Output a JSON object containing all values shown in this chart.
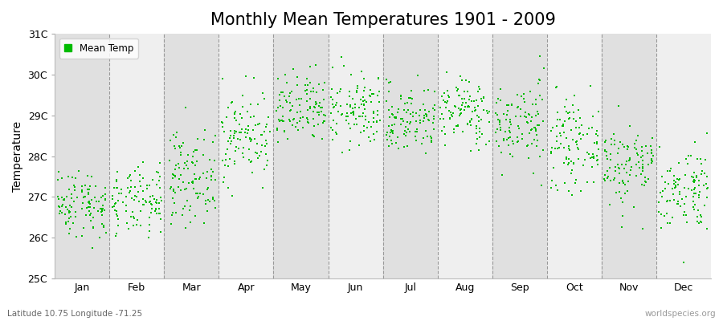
{
  "title": "Monthly Mean Temperatures 1901 - 2009",
  "ylabel": "Temperature",
  "subtitle": "Latitude 10.75 Longitude -71.25",
  "watermark": "worldspecies.org",
  "dot_color": "#00BB00",
  "dot_size": 2.5,
  "ylim": [
    25,
    31
  ],
  "yticks": [
    25,
    26,
    27,
    28,
    29,
    30,
    31
  ],
  "ytick_labels": [
    "25C",
    "26C",
    "27C",
    "28C",
    "29C",
    "30C",
    "31C"
  ],
  "months": [
    "Jan",
    "Feb",
    "Mar",
    "Apr",
    "May",
    "Jun",
    "Jul",
    "Aug",
    "Sep",
    "Oct",
    "Nov",
    "Dec"
  ],
  "monthly_means": [
    26.85,
    26.85,
    27.5,
    28.5,
    29.1,
    29.1,
    28.9,
    29.1,
    28.8,
    28.3,
    27.8,
    27.2
  ],
  "monthly_stds": [
    0.42,
    0.42,
    0.55,
    0.55,
    0.45,
    0.45,
    0.42,
    0.42,
    0.52,
    0.52,
    0.52,
    0.52
  ],
  "n_years": 109,
  "seed": 42,
  "legend_label": "Mean Temp",
  "plot_bg": "#e8e8e8",
  "band_even": "#e0e0e0",
  "band_odd": "#efefef",
  "title_fontsize": 15,
  "label_fontsize": 10,
  "tick_fontsize": 9,
  "fig_bg": "#ffffff"
}
